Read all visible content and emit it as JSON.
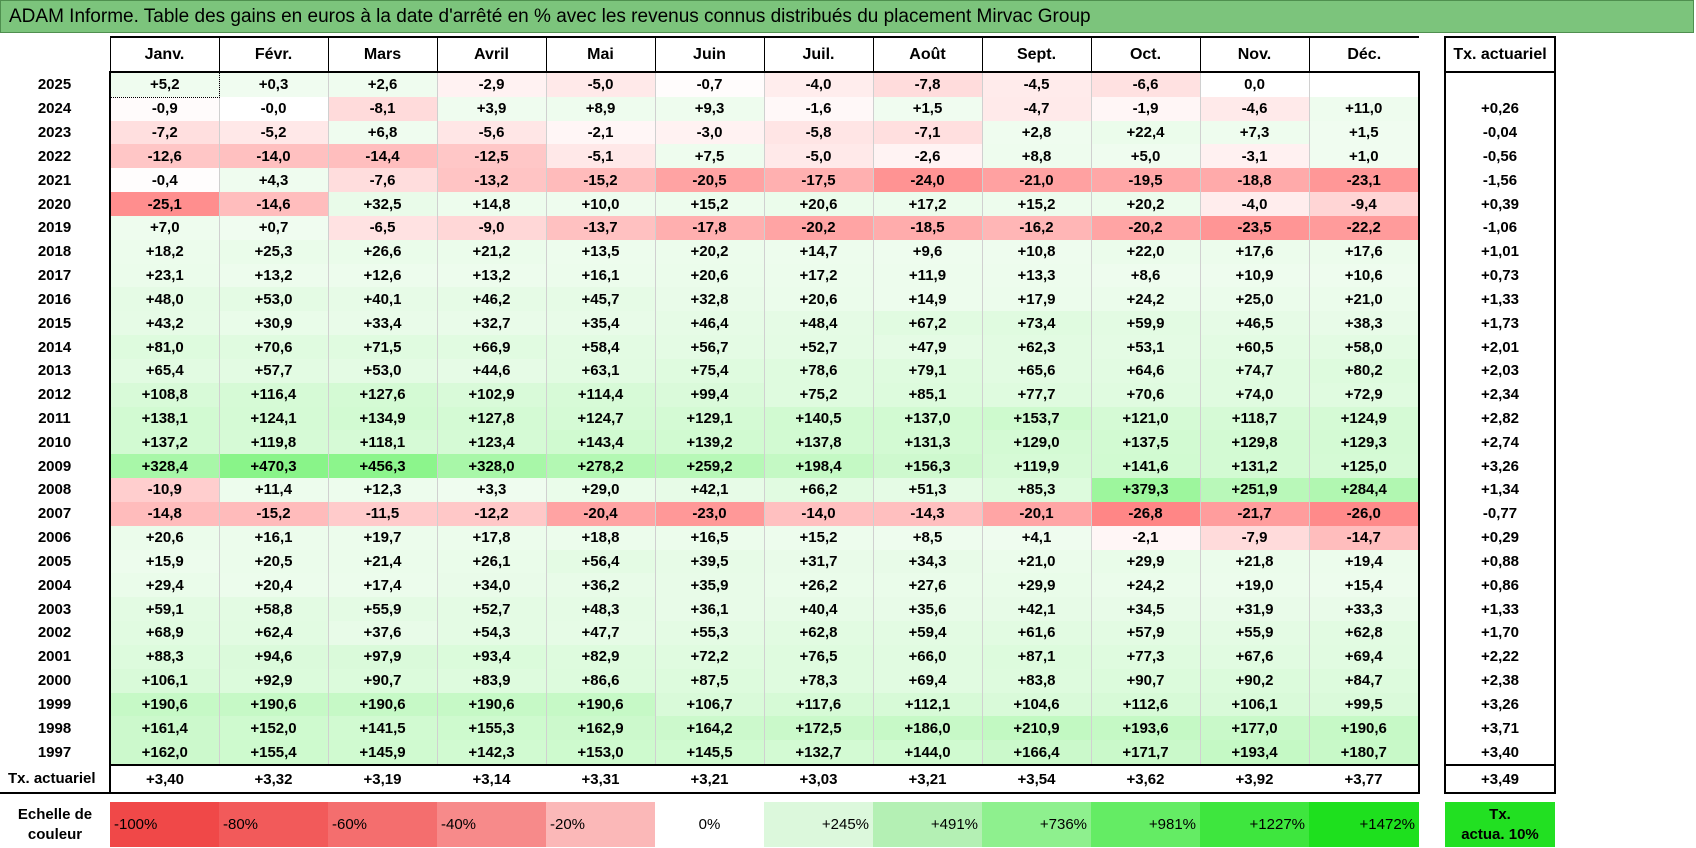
{
  "title": "ADAM Informe. Table des gains en euros à la date d'arrêté en % avec les revenus connus distribués du placement Mirvac Group",
  "months": [
    "Janv.",
    "Févr.",
    "Mars",
    "Avril",
    "Mai",
    "Juin",
    "Juil.",
    "Août",
    "Sept.",
    "Oct.",
    "Nov.",
    "Déc."
  ],
  "tx_header": "Tx. actuariel",
  "rows": [
    {
      "year": "2025",
      "v": [
        "+5,2",
        "+0,3",
        "+2,6",
        "-2,9",
        "-5,0",
        "-0,7",
        "-4,0",
        "-7,8",
        "-4,5",
        "-6,6",
        "0,0",
        ""
      ],
      "tx": ""
    },
    {
      "year": "2024",
      "v": [
        "-0,9",
        "-0,0",
        "-8,1",
        "+3,9",
        "+8,9",
        "+9,3",
        "-1,6",
        "+1,5",
        "-4,7",
        "-1,9",
        "-4,6",
        "+11,0"
      ],
      "tx": "+0,26"
    },
    {
      "year": "2023",
      "v": [
        "-7,2",
        "-5,2",
        "+6,8",
        "-5,6",
        "-2,1",
        "-3,0",
        "-5,8",
        "-7,1",
        "+2,8",
        "+22,4",
        "+7,3",
        "+1,5"
      ],
      "tx": "-0,04"
    },
    {
      "year": "2022",
      "v": [
        "-12,6",
        "-14,0",
        "-14,4",
        "-12,5",
        "-5,1",
        "+7,5",
        "-5,0",
        "-2,6",
        "+8,8",
        "+5,0",
        "-3,1",
        "+1,0"
      ],
      "tx": "-0,56"
    },
    {
      "year": "2021",
      "v": [
        "-0,4",
        "+4,3",
        "-7,6",
        "-13,2",
        "-15,2",
        "-20,5",
        "-17,5",
        "-24,0",
        "-21,0",
        "-19,5",
        "-18,8",
        "-23,1"
      ],
      "tx": "-1,56"
    },
    {
      "year": "2020",
      "v": [
        "-25,1",
        "-14,6",
        "+32,5",
        "+14,8",
        "+10,0",
        "+15,2",
        "+20,6",
        "+17,2",
        "+15,2",
        "+20,2",
        "-4,0",
        "-9,4"
      ],
      "tx": "+0,39"
    },
    {
      "year": "2019",
      "v": [
        "+7,0",
        "+0,7",
        "-6,5",
        "-9,0",
        "-13,7",
        "-17,8",
        "-20,2",
        "-18,5",
        "-16,2",
        "-20,2",
        "-23,5",
        "-22,2"
      ],
      "tx": "-1,06"
    },
    {
      "year": "2018",
      "v": [
        "+18,2",
        "+25,3",
        "+26,6",
        "+21,2",
        "+13,5",
        "+20,2",
        "+14,7",
        "+9,6",
        "+10,8",
        "+22,0",
        "+17,6",
        "+17,6"
      ],
      "tx": "+1,01"
    },
    {
      "year": "2017",
      "v": [
        "+23,1",
        "+13,2",
        "+12,6",
        "+13,2",
        "+16,1",
        "+20,6",
        "+17,2",
        "+11,9",
        "+13,3",
        "+8,6",
        "+10,9",
        "+10,6"
      ],
      "tx": "+0,73"
    },
    {
      "year": "2016",
      "v": [
        "+48,0",
        "+53,0",
        "+40,1",
        "+46,2",
        "+45,7",
        "+32,8",
        "+20,6",
        "+14,9",
        "+17,9",
        "+24,2",
        "+25,0",
        "+21,0"
      ],
      "tx": "+1,33"
    },
    {
      "year": "2015",
      "v": [
        "+43,2",
        "+30,9",
        "+33,4",
        "+32,7",
        "+35,4",
        "+46,4",
        "+48,4",
        "+67,2",
        "+73,4",
        "+59,9",
        "+46,5",
        "+38,3"
      ],
      "tx": "+1,73"
    },
    {
      "year": "2014",
      "v": [
        "+81,0",
        "+70,6",
        "+71,5",
        "+66,9",
        "+58,4",
        "+56,7",
        "+52,7",
        "+47,9",
        "+62,3",
        "+53,1",
        "+60,5",
        "+58,0"
      ],
      "tx": "+2,01"
    },
    {
      "year": "2013",
      "v": [
        "+65,4",
        "+57,7",
        "+53,0",
        "+44,6",
        "+63,1",
        "+75,4",
        "+78,6",
        "+79,1",
        "+65,6",
        "+64,6",
        "+74,7",
        "+80,2"
      ],
      "tx": "+2,03"
    },
    {
      "year": "2012",
      "v": [
        "+108,8",
        "+116,4",
        "+127,6",
        "+102,9",
        "+114,4",
        "+99,4",
        "+75,2",
        "+85,1",
        "+77,7",
        "+70,6",
        "+74,0",
        "+72,9"
      ],
      "tx": "+2,34"
    },
    {
      "year": "2011",
      "v": [
        "+138,1",
        "+124,1",
        "+134,9",
        "+127,8",
        "+124,7",
        "+129,1",
        "+140,5",
        "+137,0",
        "+153,7",
        "+121,0",
        "+118,7",
        "+124,9"
      ],
      "tx": "+2,82"
    },
    {
      "year": "2010",
      "v": [
        "+137,2",
        "+119,8",
        "+118,1",
        "+123,4",
        "+143,4",
        "+139,2",
        "+137,8",
        "+131,3",
        "+129,0",
        "+137,5",
        "+129,8",
        "+129,3"
      ],
      "tx": "+2,74"
    },
    {
      "year": "2009",
      "v": [
        "+328,4",
        "+470,3",
        "+456,3",
        "+328,0",
        "+278,2",
        "+259,2",
        "+198,4",
        "+156,3",
        "+119,9",
        "+141,6",
        "+131,2",
        "+125,0"
      ],
      "tx": "+3,26"
    },
    {
      "year": "2008",
      "v": [
        "-10,9",
        "+11,4",
        "+12,3",
        "+3,3",
        "+29,0",
        "+42,1",
        "+66,2",
        "+51,3",
        "+85,3",
        "+379,3",
        "+251,9",
        "+284,4"
      ],
      "tx": "+1,34"
    },
    {
      "year": "2007",
      "v": [
        "-14,8",
        "-15,2",
        "-11,5",
        "-12,2",
        "-20,4",
        "-23,0",
        "-14,0",
        "-14,3",
        "-20,1",
        "-26,8",
        "-21,7",
        "-26,0"
      ],
      "tx": "-0,77"
    },
    {
      "year": "2006",
      "v": [
        "+20,6",
        "+16,1",
        "+19,7",
        "+17,8",
        "+18,8",
        "+16,5",
        "+15,2",
        "+8,5",
        "+4,1",
        "-2,1",
        "-7,9",
        "-14,7"
      ],
      "tx": "+0,29"
    },
    {
      "year": "2005",
      "v": [
        "+15,9",
        "+20,5",
        "+21,4",
        "+26,1",
        "+56,4",
        "+39,5",
        "+31,7",
        "+34,3",
        "+21,0",
        "+29,9",
        "+21,8",
        "+19,4"
      ],
      "tx": "+0,88"
    },
    {
      "year": "2004",
      "v": [
        "+29,4",
        "+20,4",
        "+17,4",
        "+34,0",
        "+36,2",
        "+35,9",
        "+26,2",
        "+27,6",
        "+29,9",
        "+24,2",
        "+19,0",
        "+15,4"
      ],
      "tx": "+0,86"
    },
    {
      "year": "2003",
      "v": [
        "+59,1",
        "+58,8",
        "+55,9",
        "+52,7",
        "+48,3",
        "+36,1",
        "+40,4",
        "+35,6",
        "+42,1",
        "+34,5",
        "+31,9",
        "+33,3"
      ],
      "tx": "+1,33"
    },
    {
      "year": "2002",
      "v": [
        "+68,9",
        "+62,4",
        "+37,6",
        "+54,3",
        "+47,7",
        "+55,3",
        "+62,8",
        "+59,4",
        "+61,6",
        "+57,9",
        "+55,9",
        "+62,8"
      ],
      "tx": "+1,70"
    },
    {
      "year": "2001",
      "v": [
        "+88,3",
        "+94,6",
        "+97,9",
        "+93,4",
        "+82,9",
        "+72,2",
        "+76,5",
        "+66,0",
        "+87,1",
        "+77,3",
        "+67,6",
        "+69,4"
      ],
      "tx": "+2,22"
    },
    {
      "year": "2000",
      "v": [
        "+106,1",
        "+92,9",
        "+90,7",
        "+83,9",
        "+86,6",
        "+87,5",
        "+78,3",
        "+69,4",
        "+83,8",
        "+90,7",
        "+90,2",
        "+84,7"
      ],
      "tx": "+2,38"
    },
    {
      "year": "1999",
      "v": [
        "+190,6",
        "+190,6",
        "+190,6",
        "+190,6",
        "+190,6",
        "+106,7",
        "+117,6",
        "+112,1",
        "+104,6",
        "+112,6",
        "+106,1",
        "+99,5"
      ],
      "tx": "+3,26"
    },
    {
      "year": "1998",
      "v": [
        "+161,4",
        "+152,0",
        "+141,5",
        "+155,3",
        "+162,9",
        "+164,2",
        "+172,5",
        "+186,0",
        "+210,9",
        "+193,6",
        "+177,0",
        "+190,6"
      ],
      "tx": "+3,71"
    },
    {
      "year": "1997",
      "v": [
        "+162,0",
        "+155,4",
        "+145,9",
        "+142,3",
        "+153,0",
        "+145,5",
        "+132,7",
        "+144,0",
        "+166,4",
        "+171,7",
        "+193,4",
        "+180,7"
      ],
      "tx": "+3,40"
    }
  ],
  "tx_row": {
    "label": "Tx. actuariel",
    "v": [
      "+3,40",
      "+3,32",
      "+3,19",
      "+3,14",
      "+3,31",
      "+3,21",
      "+3,03",
      "+3,21",
      "+3,54",
      "+3,62",
      "+3,92",
      "+3,77"
    ],
    "tx": "+3,49"
  },
  "scale": {
    "label_line1": "Echelle de",
    "label_line2": "couleur",
    "items": [
      "-100%",
      "-80%",
      "-60%",
      "-40%",
      "-20%",
      "0%",
      "+245%",
      "+491%",
      "+736%",
      "+981%",
      "+1227%",
      "+1472%"
    ],
    "colors": [
      "#f04848",
      "#f25a5a",
      "#f46e6e",
      "#f78a8a",
      "#fbb8b8",
      "#ffffff",
      "#dcf8dc",
      "#b4f0b4",
      "#8ef08e",
      "#64ec64",
      "#3ee63e",
      "#1ee01e"
    ],
    "tx_line1": "Tx.",
    "tx_line2": "actua. 10%",
    "tx_color": "#22e022"
  }
}
